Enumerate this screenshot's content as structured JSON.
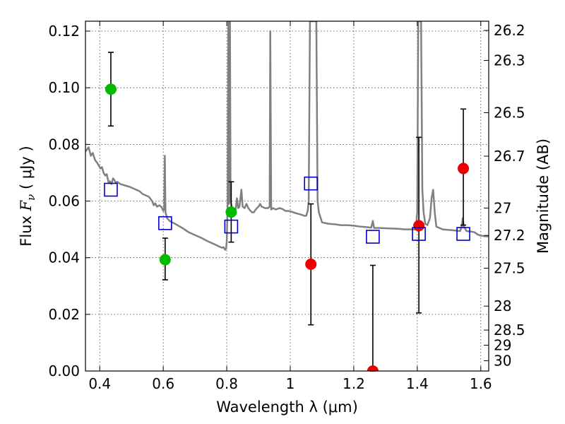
{
  "chart_data": {
    "type": "scatter",
    "title": "",
    "xlabel": "Wavelength  λ (μm)",
    "ylabel_left": "Flux  F_ν  ( μJy )",
    "ylabel_left_parts": {
      "prefix": "Flux  ",
      "symbol": "F",
      "subscript": "ν",
      "suffix": "  ( μJy )"
    },
    "ylabel_right": "Magnitude (AB)",
    "xlim": [
      0.355,
      1.625
    ],
    "ylim": [
      0.0,
      0.1235
    ],
    "x_ticks": [
      0.4,
      0.6,
      0.8,
      1.0,
      1.2,
      1.4,
      1.6
    ],
    "x_tick_labels": [
      "0.4",
      "0.6",
      "0.8",
      "1",
      "1.2",
      "1.4",
      "1.6"
    ],
    "y_ticks": [
      0.0,
      0.02,
      0.04,
      0.06,
      0.08,
      0.1,
      0.12
    ],
    "y_tick_labels": [
      "0.00",
      "0.02",
      "0.04",
      "0.06",
      "0.08",
      "0.10",
      "0.12"
    ],
    "magnitude_ticks": [
      {
        "label": "26.2",
        "mag": 26.2
      },
      {
        "label": "26.3",
        "mag": 26.3
      },
      {
        "label": "26.5",
        "mag": 26.5
      },
      {
        "label": "26.7",
        "mag": 26.7
      },
      {
        "label": "27",
        "mag": 27.0
      },
      {
        "label": "27.2",
        "mag": 27.2
      },
      {
        "label": "27.5",
        "mag": 27.5
      },
      {
        "label": "28",
        "mag": 28.0
      },
      {
        "label": "28.5",
        "mag": 28.5
      },
      {
        "label": "29",
        "mag": 29.0
      },
      {
        "label": "30",
        "mag": 30.0
      }
    ],
    "grid": true,
    "colors": {
      "spectrum": "#808080",
      "optical_detections": "#00bb00",
      "nir_detections": "#ee0000",
      "model_photometry": "#0000cc",
      "errorbar": "#000000"
    },
    "series": [
      {
        "kind": "points",
        "color": "#00bb00",
        "points": [
          {
            "x": 0.435,
            "y": 0.0995,
            "yerr_low": 0.0865,
            "yerr_high": 0.1125
          },
          {
            "x": 0.606,
            "y": 0.0393,
            "yerr_low": 0.0322,
            "yerr_high": 0.0469
          },
          {
            "x": 0.814,
            "y": 0.0561,
            "yerr_low": 0.0455,
            "yerr_high": 0.0668
          }
        ]
      },
      {
        "kind": "points",
        "color": "#ee0000",
        "points": [
          {
            "x": 1.065,
            "y": 0.0377,
            "yerr_low": 0.0163,
            "yerr_high": 0.059
          },
          {
            "x": 1.26,
            "y": 0.0,
            "yerr_low": 0.0,
            "yerr_high": 0.0373
          },
          {
            "x": 1.405,
            "y": 0.0513,
            "yerr_low": 0.0205,
            "yerr_high": 0.0825
          },
          {
            "x": 1.545,
            "y": 0.0715,
            "yerr_low": 0.0515,
            "yerr_high": 0.0925
          }
        ]
      },
      {
        "kind": "open-squares",
        "color": "#0000cc",
        "points": [
          {
            "x": 0.435,
            "y": 0.064
          },
          {
            "x": 0.606,
            "y": 0.0522
          },
          {
            "x": 0.814,
            "y": 0.051
          },
          {
            "x": 1.065,
            "y": 0.0662
          },
          {
            "x": 1.26,
            "y": 0.0474
          },
          {
            "x": 1.405,
            "y": 0.0484
          },
          {
            "x": 1.545,
            "y": 0.0484
          }
        ]
      },
      {
        "kind": "spectrum-line",
        "color": "#808080",
        "points": [
          [
            0.355,
            0.0775
          ],
          [
            0.365,
            0.079
          ],
          [
            0.372,
            0.076
          ],
          [
            0.378,
            0.077
          ],
          [
            0.385,
            0.0745
          ],
          [
            0.392,
            0.0735
          ],
          [
            0.397,
            0.0725
          ],
          [
            0.402,
            0.0715
          ],
          [
            0.407,
            0.072
          ],
          [
            0.412,
            0.07
          ],
          [
            0.417,
            0.069
          ],
          [
            0.422,
            0.0695
          ],
          [
            0.428,
            0.0665
          ],
          [
            0.432,
            0.067
          ],
          [
            0.437,
            0.066
          ],
          [
            0.442,
            0.068
          ],
          [
            0.446,
            0.0675
          ],
          [
            0.45,
            0.0665
          ],
          [
            0.455,
            0.0668
          ],
          [
            0.465,
            0.066
          ],
          [
            0.48,
            0.0655
          ],
          [
            0.495,
            0.065
          ],
          [
            0.505,
            0.0645
          ],
          [
            0.515,
            0.064
          ],
          [
            0.525,
            0.0635
          ],
          [
            0.535,
            0.0625
          ],
          [
            0.545,
            0.062
          ],
          [
            0.555,
            0.0615
          ],
          [
            0.565,
            0.06
          ],
          [
            0.57,
            0.0585
          ],
          [
            0.575,
            0.0592
          ],
          [
            0.58,
            0.058
          ],
          [
            0.588,
            0.0585
          ],
          [
            0.595,
            0.0578
          ],
          [
            0.6,
            0.0565
          ],
          [
            0.603,
            0.0575
          ],
          [
            0.605,
            0.076
          ],
          [
            0.607,
            0.056
          ],
          [
            0.612,
            0.054
          ],
          [
            0.62,
            0.053
          ],
          [
            0.64,
            0.0518
          ],
          [
            0.66,
            0.0505
          ],
          [
            0.68,
            0.049
          ],
          [
            0.7,
            0.048
          ],
          [
            0.72,
            0.047
          ],
          [
            0.74,
            0.0458
          ],
          [
            0.76,
            0.0448
          ],
          [
            0.775,
            0.044
          ],
          [
            0.785,
            0.0435
          ],
          [
            0.79,
            0.0437
          ],
          [
            0.795,
            0.0428
          ],
          [
            0.798,
            0.0432
          ],
          [
            0.8,
            0.046
          ],
          [
            0.803,
            0.06
          ],
          [
            0.805,
            0.1235
          ],
          [
            0.807,
            0.059
          ],
          [
            0.81,
            0.1235
          ],
          [
            0.812,
            0.06
          ],
          [
            0.816,
            0.058
          ],
          [
            0.822,
            0.0565
          ],
          [
            0.828,
            0.057
          ],
          [
            0.832,
            0.061
          ],
          [
            0.836,
            0.0575
          ],
          [
            0.84,
            0.058
          ],
          [
            0.846,
            0.064
          ],
          [
            0.85,
            0.058
          ],
          [
            0.856,
            0.0575
          ],
          [
            0.862,
            0.059
          ],
          [
            0.868,
            0.0575
          ],
          [
            0.875,
            0.0565
          ],
          [
            0.88,
            0.056
          ],
          [
            0.885,
            0.056
          ],
          [
            0.89,
            0.0568
          ],
          [
            0.895,
            0.0575
          ],
          [
            0.9,
            0.058
          ],
          [
            0.905,
            0.059
          ],
          [
            0.91,
            0.058
          ],
          [
            0.915,
            0.0578
          ],
          [
            0.92,
            0.0575
          ],
          [
            0.93,
            0.0575
          ],
          [
            0.935,
            0.058
          ],
          [
            0.937,
            0.12
          ],
          [
            0.94,
            0.057
          ],
          [
            0.945,
            0.0575
          ],
          [
            0.955,
            0.057
          ],
          [
            0.965,
            0.0575
          ],
          [
            0.975,
            0.0572
          ],
          [
            0.985,
            0.0565
          ],
          [
            0.995,
            0.0565
          ],
          [
            1.005,
            0.0562
          ],
          [
            1.015,
            0.0558
          ],
          [
            1.025,
            0.0555
          ],
          [
            1.035,
            0.0552
          ],
          [
            1.045,
            0.0548
          ],
          [
            1.05,
            0.0548
          ],
          [
            1.055,
            0.0565
          ],
          [
            1.058,
            0.06
          ],
          [
            1.062,
            0.1235
          ],
          [
            1.07,
            0.1235
          ],
          [
            1.078,
            0.1235
          ],
          [
            1.082,
            0.1235
          ],
          [
            1.086,
            0.06
          ],
          [
            1.09,
            0.056
          ],
          [
            1.1,
            0.0525
          ],
          [
            1.12,
            0.052
          ],
          [
            1.14,
            0.0518
          ],
          [
            1.16,
            0.0515
          ],
          [
            1.18,
            0.0515
          ],
          [
            1.2,
            0.0513
          ],
          [
            1.22,
            0.051
          ],
          [
            1.24,
            0.0508
          ],
          [
            1.255,
            0.0506
          ],
          [
            1.26,
            0.053
          ],
          [
            1.264,
            0.0505
          ],
          [
            1.28,
            0.0505
          ],
          [
            1.3,
            0.0504
          ],
          [
            1.32,
            0.0503
          ],
          [
            1.34,
            0.0502
          ],
          [
            1.36,
            0.05
          ],
          [
            1.38,
            0.05
          ],
          [
            1.395,
            0.05
          ],
          [
            1.4,
            0.056
          ],
          [
            1.403,
            0.1235
          ],
          [
            1.412,
            0.1235
          ],
          [
            1.416,
            0.064
          ],
          [
            1.42,
            0.056
          ],
          [
            1.425,
            0.052
          ],
          [
            1.432,
            0.0515
          ],
          [
            1.44,
            0.054
          ],
          [
            1.445,
            0.061
          ],
          [
            1.45,
            0.064
          ],
          [
            1.455,
            0.056
          ],
          [
            1.46,
            0.051
          ],
          [
            1.48,
            0.05
          ],
          [
            1.5,
            0.0498
          ],
          [
            1.52,
            0.0496
          ],
          [
            1.535,
            0.0494
          ],
          [
            1.54,
            0.051
          ],
          [
            1.543,
            0.054
          ],
          [
            1.547,
            0.051
          ],
          [
            1.555,
            0.0494
          ],
          [
            1.57,
            0.0492
          ],
          [
            1.58,
            0.049
          ],
          [
            1.59,
            0.0482
          ],
          [
            1.6,
            0.0478
          ],
          [
            1.61,
            0.0476
          ],
          [
            1.625,
            0.0475
          ]
        ]
      }
    ]
  }
}
